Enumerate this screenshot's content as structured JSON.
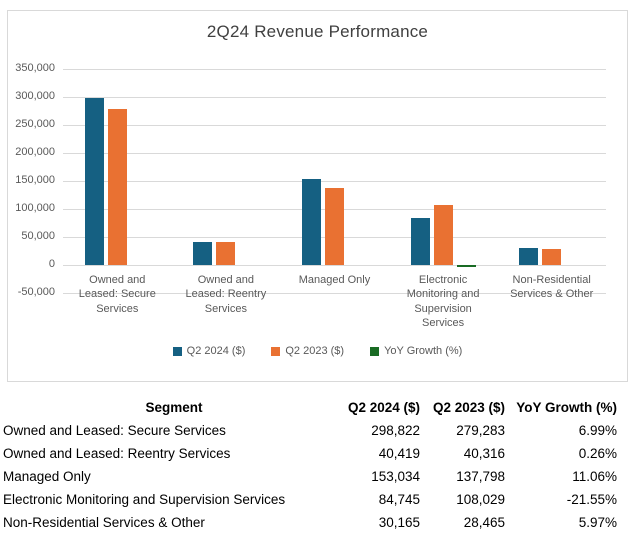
{
  "chart_data": {
    "type": "bar",
    "title": "2Q24 Revenue Performance",
    "categories": [
      "Owned and Leased: Secure Services",
      "Owned and Leased: Reentry Services",
      "Managed Only",
      "Electronic Monitoring and Supervision Services",
      "Non-Residential Services & Other"
    ],
    "series": [
      {
        "name": "Q2 2024 ($)",
        "color": "#156082",
        "values": [
          298822,
          40419,
          153034,
          84745,
          30165
        ]
      },
      {
        "name": "Q2 2023 ($)",
        "color": "#E97132",
        "values": [
          279283,
          40316,
          137798,
          108029,
          28465
        ]
      },
      {
        "name": "YoY Growth (%)",
        "color": "#196B24",
        "values": [
          6.99,
          0.26,
          11.06,
          -21.55,
          5.97
        ]
      }
    ],
    "ylim": [
      -50000,
      350000
    ],
    "ytick_step": 50000,
    "yticks": [
      "350,000",
      "300,000",
      "250,000",
      "200,000",
      "150,000",
      "100,000",
      "50,000",
      "0",
      "-50,000"
    ],
    "grid": true,
    "legend_position": "bottom"
  },
  "colors": {
    "q2_2024": "#156082",
    "q2_2023": "#E97132",
    "yoy_growth": "#196B24",
    "gridline": "#d9d9d9",
    "axis_text": "#595959",
    "title_text": "#404040"
  },
  "table": {
    "headers": {
      "segment": "Segment",
      "q2_2024": "Q2 2024 ($)",
      "q2_2023": "Q2 2023 ($)",
      "yoy": "YoY Growth (%)"
    },
    "rows": [
      {
        "segment": "Owned and Leased: Secure Services",
        "q2_2024": "298,822",
        "q2_2023": "279,283",
        "yoy": "6.99%"
      },
      {
        "segment": "Owned and Leased: Reentry Services",
        "q2_2024": "40,419",
        "q2_2023": "40,316",
        "yoy": "0.26%"
      },
      {
        "segment": "Managed Only",
        "q2_2024": "153,034",
        "q2_2023": "137,798",
        "yoy": "11.06%"
      },
      {
        "segment": "Electronic Monitoring and Supervision Services",
        "q2_2024": "84,745",
        "q2_2023": "108,029",
        "yoy": "-21.55%"
      },
      {
        "segment": "Non-Residential Services & Other",
        "q2_2024": "30,165",
        "q2_2023": "28,465",
        "yoy": "5.97%"
      }
    ]
  }
}
